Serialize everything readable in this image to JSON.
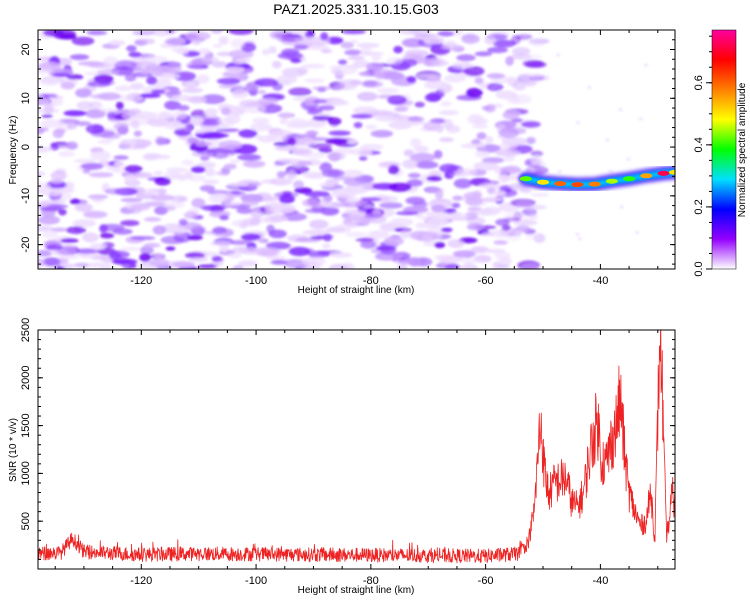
{
  "title": "PAZ1.2025.331.10.15.G03",
  "chart_data": [
    {
      "type": "heatmap",
      "xlabel": "Height of straight line (km)",
      "ylabel": "Frequency (Hz)",
      "xlim": [
        -138,
        -27
      ],
      "ylim": [
        -25,
        24
      ],
      "xticks": [
        -120,
        -100,
        -80,
        -60,
        -40
      ],
      "xtick_labels": [
        "-120",
        "-100",
        "-80",
        "-60",
        "-40"
      ],
      "yticks": [
        -20,
        -10,
        0,
        10,
        20
      ],
      "ytick_labels": [
        "-20",
        "-10",
        "0",
        "10",
        "20"
      ],
      "noise_region_end_km": -52,
      "signal_track": {
        "x": [
          -53,
          -50,
          -47,
          -44,
          -41,
          -38,
          -35,
          -32,
          -29,
          -27
        ],
        "y": [
          -6.5,
          -7.2,
          -7.5,
          -7.7,
          -7.6,
          -7.0,
          -6.5,
          -5.9,
          -5.4,
          -5.2
        ],
        "peak_amplitude": [
          0.42,
          0.5,
          0.6,
          0.62,
          0.58,
          0.45,
          0.4,
          0.55,
          0.72,
          0.5
        ]
      },
      "colorbar": {
        "label": "Normalized spectral amplitude",
        "range": [
          0,
          0.77
        ],
        "ticks": [
          0.0,
          0.2,
          0.4,
          0.6
        ],
        "tick_labels": [
          "0.0",
          "0.2",
          "0.4",
          "0.6"
        ],
        "colormap": [
          "#ffffff",
          "#9400ff",
          "#0000ff",
          "#00e0ff",
          "#00ff00",
          "#ffff00",
          "#ff8000",
          "#ff0000",
          "#ff00a0"
        ]
      }
    },
    {
      "type": "line",
      "xlabel": "Height of straight line (km)",
      "ylabel": "SNR (10 * v/v)",
      "xlim": [
        -138,
        -27
      ],
      "ylim": [
        0,
        2500
      ],
      "xticks": [
        -120,
        -100,
        -80,
        -60,
        -40
      ],
      "xtick_labels": [
        "-120",
        "-100",
        "-80",
        "-60",
        "-40"
      ],
      "yticks": [
        500,
        1000,
        1500,
        2000,
        2500
      ],
      "ytick_labels": [
        "500",
        "1000",
        "1500",
        "2000",
        "2500"
      ],
      "series": [
        {
          "name": "SNR",
          "color": "#ee2222",
          "noise_floor": 100,
          "x": [
            -138,
            -134,
            -132,
            -130,
            -120,
            -110,
            -100,
            -90,
            -80,
            -70,
            -60,
            -54,
            -52.5,
            -51.5,
            -50.7,
            -50.3,
            -49.8,
            -49,
            -48,
            -46,
            -45,
            -44,
            -43,
            -42,
            -41.3,
            -40.5,
            -39.8,
            -39,
            -38,
            -37.3,
            -36.7,
            -36.3,
            -35.8,
            -35,
            -34,
            -33,
            -32,
            -31.2,
            -30.5,
            -29.9,
            -29.6,
            -29.3,
            -29,
            -28.5,
            -28,
            -27.5,
            -27
          ],
          "y": [
            160,
            170,
            320,
            180,
            150,
            160,
            155,
            150,
            145,
            140,
            135,
            160,
            300,
            620,
            1350,
            1530,
            1050,
            780,
            900,
            950,
            700,
            650,
            780,
            1150,
            1380,
            1550,
            1150,
            1100,
            1350,
            1480,
            1740,
            1650,
            1200,
            800,
            600,
            450,
            500,
            820,
            300,
            1800,
            2480,
            2100,
            1300,
            350,
            500,
            800,
            650
          ]
        }
      ]
    }
  ]
}
